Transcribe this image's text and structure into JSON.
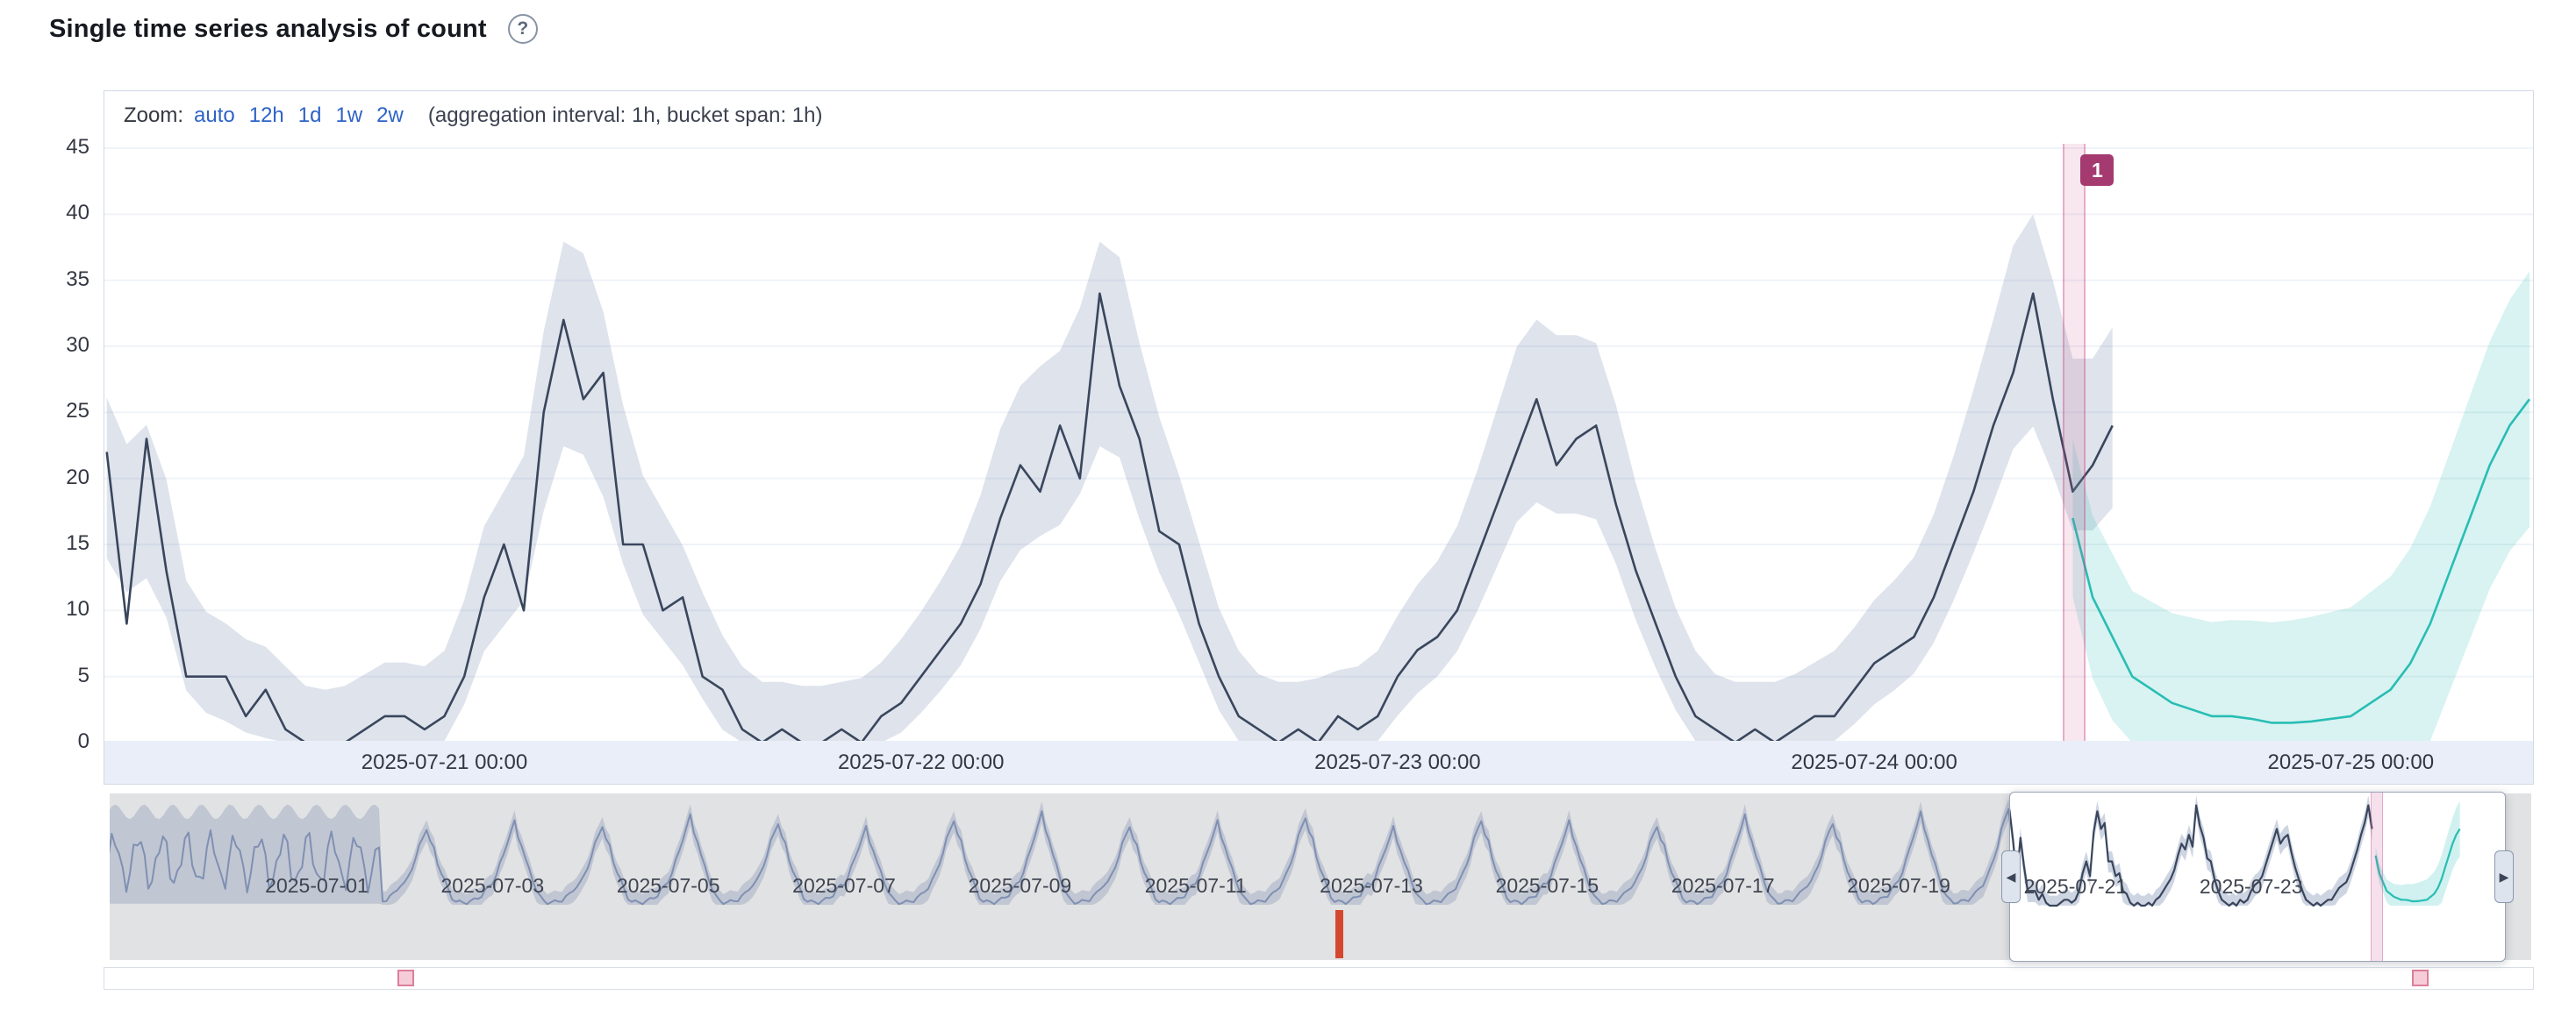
{
  "header": {
    "title": "Single time series analysis of count",
    "help_icon": "?"
  },
  "toolbar": {
    "zoom_label": "Zoom:",
    "zoom_options": [
      "auto",
      "12h",
      "1d",
      "1w",
      "2w"
    ],
    "aggregation_note": "(aggregation interval: 1h, bucket span: 1h)"
  },
  "brush": {
    "left_handle_icon": "◀",
    "right_handle_icon": "▶"
  },
  "colors": {
    "link": "#2e63c7",
    "actual_line": "#39465c",
    "model_bounds_fill": "#8899bb",
    "forecast_line": "#28bdb4",
    "anomaly_badge": "#a43a70",
    "anomaly_band": "#c64082",
    "critical_marker": "#d5472f",
    "warning_marker_fill": "#f6ccd8",
    "warning_marker_border": "#dc7f9b",
    "axis_strip_bg": "#e9eef9",
    "context_bg": "#e1e2e3"
  },
  "chart_data": {
    "type": "line",
    "title": "Single time series analysis of count",
    "xlabel": "",
    "ylabel": "",
    "ylim": [
      0,
      45
    ],
    "grid": false,
    "legend": false,
    "y_ticks": [
      0,
      5,
      10,
      15,
      20,
      25,
      30,
      35,
      40,
      45
    ],
    "x_ticks": [
      "2025-07-21 00:00",
      "2025-07-22 00:00",
      "2025-07-23 00:00",
      "2025-07-24 00:00",
      "2025-07-25 00:00"
    ],
    "main": {
      "start": "2025-07-20 07:00",
      "interval_hours": 1,
      "actual": [
        22,
        9,
        23,
        13,
        5,
        5,
        5,
        2,
        4,
        1,
        0,
        0,
        0,
        1,
        2,
        2,
        1,
        2,
        5,
        11,
        15,
        10,
        25,
        32,
        26,
        28,
        15,
        15,
        10,
        11,
        5,
        4,
        1,
        0,
        1,
        0,
        0,
        1,
        0,
        2,
        3,
        5,
        7,
        9,
        12,
        17,
        21,
        19,
        24,
        20,
        34,
        27,
        23,
        16,
        15,
        9,
        5,
        2,
        1,
        0,
        1,
        0,
        2,
        1,
        2,
        5,
        7,
        8,
        10,
        14,
        18,
        22,
        26,
        21,
        23,
        24,
        18,
        13,
        9,
        5,
        2,
        1,
        0,
        1,
        0,
        1,
        2,
        2,
        4,
        6,
        7,
        8,
        11,
        15,
        19,
        24,
        28,
        34,
        26,
        19,
        21,
        24
      ],
      "bounds": {
        "upper_factor": 1.18,
        "upper_offset": 4,
        "lower_factor": 0.85,
        "lower_offset": 2
      },
      "forecast_start": "2025-07-24 10:00",
      "forecast": [
        17,
        11,
        8,
        5,
        4,
        3,
        2.5,
        2,
        2,
        1.8,
        1.5,
        1.5,
        1.6,
        1.8,
        2,
        3,
        4,
        6,
        9,
        13,
        17,
        21,
        24,
        26
      ],
      "forecast_margin": {
        "base": 6,
        "growth": 0.16
      },
      "anomaly": {
        "time": "2025-07-24 10:00",
        "label": "1",
        "severity": "critical"
      }
    },
    "context": {
      "start": "2025-06-28 15:00",
      "wide_bounds_until": "2025-07-01 18:00",
      "axis_labels": [
        "2025-07-01",
        "2025-07-03",
        "2025-07-05",
        "2025-07-07",
        "2025-07-09",
        "2025-07-11",
        "2025-07-13",
        "2025-07-15",
        "2025-07-17",
        "2025-07-19",
        "2025-07-21",
        "2025-07-23"
      ],
      "daily_template": [
        9,
        12,
        16,
        20,
        25,
        29,
        33,
        27,
        24,
        18,
        14,
        10,
        6,
        3,
        1.5,
        1,
        1,
        1,
        1.5,
        2,
        3,
        4,
        6,
        7.5
      ],
      "day_peaks": [
        30,
        26,
        28,
        27,
        30,
        28,
        26,
        29,
        31,
        27,
        28,
        30,
        26,
        29,
        28,
        27,
        30,
        28,
        31,
        33,
        26,
        34,
        26,
        34,
        26
      ],
      "critical_marker_time": "2025-07-12 15:00",
      "warning_marker_times": [
        "2025-07-02 00:00",
        "2025-07-24 22:00"
      ]
    }
  }
}
